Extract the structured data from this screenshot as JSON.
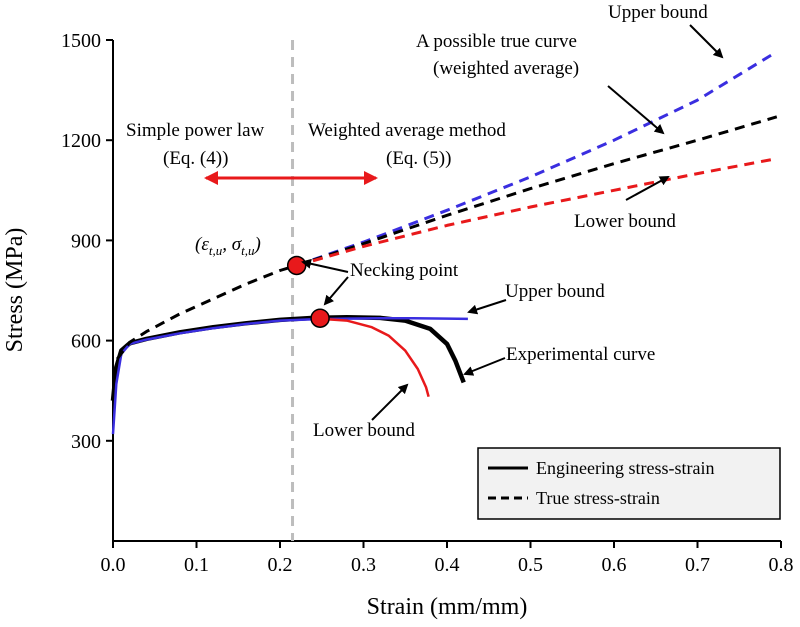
{
  "chart_data": {
    "type": "line",
    "xlabel": "Strain (mm/mm)",
    "ylabel": "Stress (MPa)",
    "xlim": [
      0,
      0.8
    ],
    "ylim": [
      0,
      1500
    ],
    "x_ticks": [
      "0.0",
      "0.1",
      "0.2",
      "0.3",
      "0.4",
      "0.5",
      "0.6",
      "0.7",
      "0.8"
    ],
    "x_tick_values": [
      0,
      0.1,
      0.2,
      0.3,
      0.4,
      0.5,
      0.6,
      0.7,
      0.8
    ],
    "y_ticks": [
      "300",
      "600",
      "900",
      "1200",
      "1500"
    ],
    "y_tick_values": [
      300,
      600,
      900,
      1200,
      1500
    ],
    "colors": {
      "black": "#000000",
      "blue": "#3a2ee0",
      "red": "#e8191b",
      "gray": "#bdbdbd",
      "marker": "#e8191b"
    },
    "series": [
      {
        "name": "Engineering stress-strain (experimental)",
        "style": "solid-thick",
        "color": "#000000",
        "points": [
          [
            0.0,
            420
          ],
          [
            0.004,
            520
          ],
          [
            0.01,
            570
          ],
          [
            0.02,
            592
          ],
          [
            0.04,
            605
          ],
          [
            0.08,
            625
          ],
          [
            0.12,
            640
          ],
          [
            0.16,
            652
          ],
          [
            0.2,
            662
          ],
          [
            0.24,
            668
          ],
          [
            0.28,
            670
          ],
          [
            0.32,
            668
          ],
          [
            0.35,
            660
          ],
          [
            0.38,
            635
          ],
          [
            0.4,
            590
          ],
          [
            0.41,
            540
          ],
          [
            0.42,
            475
          ]
        ]
      },
      {
        "name": "Engineering upper bound",
        "style": "solid-thin",
        "color": "#3a2ee0",
        "points": [
          [
            0.0,
            320
          ],
          [
            0.004,
            470
          ],
          [
            0.01,
            560
          ],
          [
            0.02,
            590
          ],
          [
            0.04,
            603
          ],
          [
            0.08,
            622
          ],
          [
            0.12,
            637
          ],
          [
            0.16,
            650
          ],
          [
            0.2,
            660
          ],
          [
            0.24,
            664
          ],
          [
            0.28,
            666
          ],
          [
            0.32,
            667
          ],
          [
            0.36,
            667
          ],
          [
            0.4,
            666
          ],
          [
            0.425,
            665
          ]
        ]
      },
      {
        "name": "Engineering lower bound",
        "style": "solid-thin",
        "color": "#e8191b",
        "points": [
          [
            0.25,
            665
          ],
          [
            0.28,
            660
          ],
          [
            0.31,
            640
          ],
          [
            0.33,
            615
          ],
          [
            0.35,
            570
          ],
          [
            0.365,
            515
          ],
          [
            0.375,
            460
          ],
          [
            0.378,
            432
          ]
        ]
      },
      {
        "name": "True stress-strain (power law)",
        "style": "dashed",
        "color": "#000000",
        "points": [
          [
            0.005,
            545
          ],
          [
            0.02,
            595
          ],
          [
            0.04,
            627
          ],
          [
            0.08,
            680
          ],
          [
            0.12,
            725
          ],
          [
            0.16,
            770
          ],
          [
            0.2,
            810
          ],
          [
            0.22,
            825
          ]
        ]
      },
      {
        "name": "Upper bound (true)",
        "style": "dashed",
        "color": "#3a2ee0",
        "points": [
          [
            0.22,
            825
          ],
          [
            0.3,
            895
          ],
          [
            0.4,
            990
          ],
          [
            0.5,
            1090
          ],
          [
            0.6,
            1200
          ],
          [
            0.7,
            1320
          ],
          [
            0.795,
            1465
          ]
        ]
      },
      {
        "name": "A possible true curve (weighted average)",
        "style": "dashed",
        "color": "#000000",
        "points": [
          [
            0.22,
            825
          ],
          [
            0.3,
            890
          ],
          [
            0.4,
            975
          ],
          [
            0.5,
            1055
          ],
          [
            0.6,
            1130
          ],
          [
            0.7,
            1200
          ],
          [
            0.795,
            1270
          ]
        ]
      },
      {
        "name": "Lower bound (true)",
        "style": "dashed",
        "color": "#e8191b",
        "points": [
          [
            0.22,
            825
          ],
          [
            0.3,
            882
          ],
          [
            0.4,
            945
          ],
          [
            0.5,
            1000
          ],
          [
            0.6,
            1050
          ],
          [
            0.7,
            1100
          ],
          [
            0.795,
            1145
          ]
        ]
      }
    ],
    "markers": [
      {
        "name": "true-necking",
        "x": 0.22,
        "y": 825
      },
      {
        "name": "engineering-necking",
        "x": 0.248,
        "y": 667
      }
    ],
    "vline": {
      "x": 0.215
    },
    "annotations": {
      "upper_bound_true": "Upper bound",
      "possible_true_line1": "A possible true curve",
      "possible_true_line2": "(weighted average)",
      "lower_bound_true": "Lower bound",
      "simple_power_law": "Simple power law",
      "eq4": "(Eq. (4))",
      "weighted_average_method": "Weighted average method",
      "eq5": "(Eq. (5))",
      "epsilon": "(ε",
      "tu_sub": "t,u",
      "sigma": ", σ",
      "close_paren": ")",
      "necking_point": "Necking point",
      "upper_bound_eng": "Upper bound",
      "experimental_curve": "Experimental  curve",
      "lower_bound_eng": "Lower bound"
    },
    "legend": {
      "position": "bottom-right",
      "entries": [
        {
          "label": "Engineering  stress-strain",
          "style": "solid"
        },
        {
          "label": "True stress-strain",
          "style": "dashed"
        }
      ]
    }
  }
}
